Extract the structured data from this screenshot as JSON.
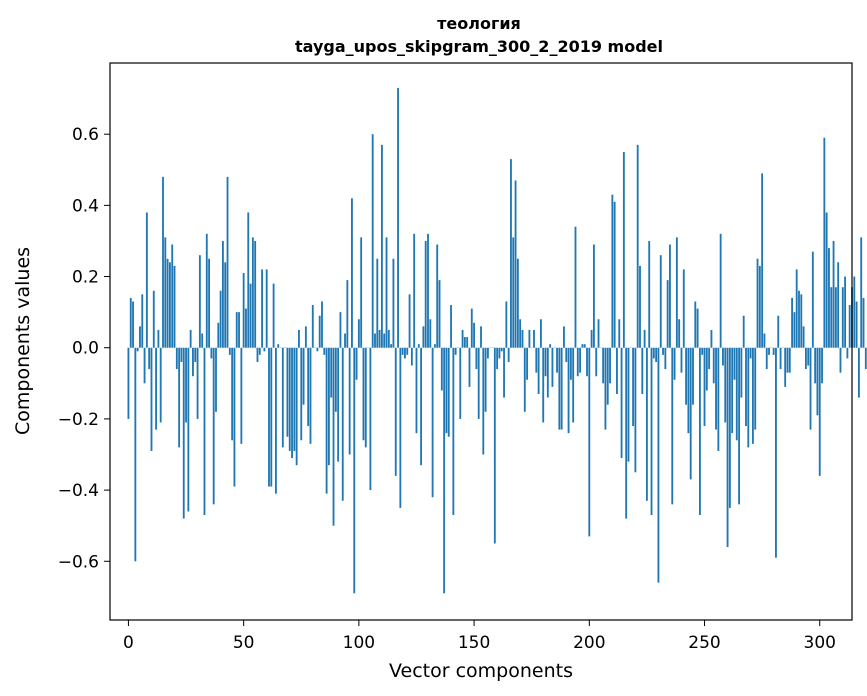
{
  "chart_data": {
    "type": "bar",
    "title": "теология",
    "subtitle": "tayga_upos_skipgram_300_2_2019 model",
    "xlabel": "Vector components",
    "ylabel": "Components values",
    "xlim": [
      -8,
      314
    ],
    "ylim": [
      -0.765,
      0.8
    ],
    "xticks": [
      0,
      50,
      100,
      150,
      200,
      250,
      300
    ],
    "yticks": [
      -0.6,
      -0.4,
      -0.2,
      0.0,
      0.2,
      0.4,
      0.6
    ],
    "xtick_labels": [
      "0",
      "50",
      "100",
      "150",
      "200",
      "250",
      "300"
    ],
    "ytick_labels": [
      "−0.6",
      "−0.4",
      "−0.2",
      "0.0",
      "0.2",
      "0.4",
      "0.6"
    ],
    "bar_color": "#1f77b4",
    "grid": false,
    "values": [
      -0.2,
      0.14,
      0.13,
      -0.6,
      -0.01,
      0.06,
      0.15,
      -0.1,
      0.38,
      -0.06,
      -0.29,
      0.16,
      -0.23,
      0.05,
      -0.21,
      0.48,
      0.31,
      0.25,
      0.24,
      0.29,
      0.23,
      -0.06,
      -0.28,
      -0.04,
      -0.48,
      -0.21,
      -0.46,
      0.05,
      -0.08,
      -0.04,
      -0.2,
      0.26,
      0.04,
      -0.47,
      0.32,
      0.25,
      -0.03,
      -0.44,
      -0.18,
      0.07,
      0.16,
      0.3,
      0.24,
      0.48,
      -0.02,
      -0.26,
      -0.39,
      0.1,
      0.1,
      -0.27,
      0.21,
      0.11,
      0.38,
      0.18,
      0.31,
      0.3,
      -0.04,
      -0.02,
      0.22,
      -0.01,
      0.22,
      -0.39,
      -0.39,
      0.18,
      -0.41,
      0.01,
      0.0,
      -0.28,
      0.0,
      -0.25,
      -0.29,
      -0.31,
      -0.29,
      -0.33,
      0.05,
      -0.26,
      -0.16,
      0.06,
      -0.22,
      -0.27,
      0.12,
      0.0,
      -0.01,
      0.09,
      0.13,
      -0.02,
      -0.41,
      -0.33,
      -0.14,
      -0.5,
      -0.18,
      -0.32,
      0.1,
      -0.43,
      0.04,
      0.19,
      -0.3,
      0.42,
      -0.69,
      -0.09,
      0.08,
      0.31,
      -0.26,
      -0.28,
      0.0,
      -0.4,
      0.6,
      0.04,
      0.25,
      0.05,
      0.57,
      0.04,
      0.31,
      0.05,
      0.01,
      0.25,
      -0.36,
      0.73,
      -0.45,
      -0.02,
      -0.03,
      -0.02,
      0.15,
      -0.05,
      0.32,
      -0.24,
      0.01,
      -0.33,
      0.06,
      0.3,
      0.32,
      0.08,
      -0.42,
      0.01,
      0.29,
      0.19,
      -0.12,
      -0.69,
      -0.24,
      -0.25,
      0.12,
      -0.47,
      -0.02,
      0.0,
      -0.2,
      0.05,
      0.03,
      0.03,
      -0.11,
      0.11,
      0.07,
      -0.06,
      -0.2,
      0.06,
      -0.3,
      -0.18,
      -0.03,
      0.0,
      0.0,
      -0.55,
      -0.06,
      -0.03,
      -0.01,
      -0.14,
      0.13,
      -0.04,
      0.53,
      0.31,
      0.47,
      0.25,
      0.08,
      0.05,
      -0.18,
      -0.09,
      0.05,
      0.0,
      0.05,
      -0.07,
      -0.13,
      0.08,
      -0.21,
      -0.08,
      -0.14,
      0.01,
      -0.11,
      0.0,
      -0.07,
      -0.23,
      -0.23,
      0.06,
      -0.04,
      -0.24,
      -0.09,
      -0.21,
      0.34,
      -0.08,
      -0.07,
      0.01,
      0.01,
      -0.08,
      -0.53,
      0.05,
      0.29,
      -0.08,
      0.08,
      0.0,
      -0.1,
      -0.23,
      -0.16,
      -0.1,
      0.43,
      0.41,
      -0.13,
      0.08,
      -0.31,
      0.55,
      -0.48,
      -0.32,
      0.0,
      -0.22,
      -0.35,
      0.57,
      0.23,
      -0.13,
      0.05,
      -0.43,
      0.3,
      -0.47,
      -0.03,
      -0.04,
      -0.66,
      0.26,
      -0.02,
      -0.06,
      0.19,
      0.29,
      -0.44,
      -0.09,
      0.31,
      0.08,
      -0.07,
      0.22,
      -0.16,
      -0.24,
      -0.37,
      -0.16,
      0.13,
      0.11,
      -0.47,
      -0.02,
      -0.22,
      -0.12,
      -0.06,
      0.05,
      -0.1,
      -0.23,
      -0.29,
      0.32,
      -0.05,
      -0.21,
      -0.56,
      -0.45,
      -0.24,
      -0.09,
      -0.26,
      -0.44,
      -0.14,
      0.09,
      -0.22,
      -0.28,
      -0.03,
      -0.27,
      -0.23,
      0.25,
      0.23,
      0.49,
      0.04,
      -0.06,
      -0.02,
      0.0,
      -0.02,
      -0.59,
      0.09,
      -0.06,
      0.0,
      -0.11,
      -0.07,
      -0.07,
      0.14,
      0.1,
      0.22,
      0.16,
      0.15,
      0.06,
      -0.06,
      -0.05,
      -0.23,
      0.27,
      -0.1,
      -0.19,
      -0.36,
      -0.1,
      0.59,
      0.38,
      0.28,
      0.17,
      0.3,
      0.17,
      0.24,
      -0.07,
      0.17,
      0.2,
      -0.03,
      0.12,
      0.17,
      0.2,
      0.13,
      -0.14,
      0.31,
      0.14,
      -0.06
    ]
  }
}
